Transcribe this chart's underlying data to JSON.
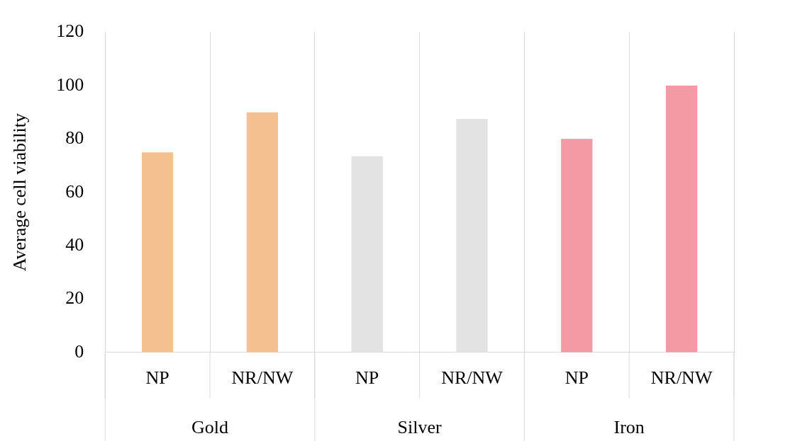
{
  "chart_data": {
    "type": "bar",
    "ylabel": "Average cell viability",
    "categories": [
      "NP",
      "NR/NW",
      "NP",
      "NR/NW",
      "NP",
      "NR/NW"
    ],
    "values": [
      75,
      90,
      73.5,
      87.5,
      80,
      100
    ],
    "colors": [
      "#f5c08f",
      "#f5c08f",
      "#e3e3e3",
      "#e3e3e3",
      "#f499a6",
      "#f499a6"
    ],
    "ylim": [
      0,
      120
    ],
    "yticks": [
      0,
      20,
      40,
      60,
      80,
      100,
      120
    ],
    "grid": "x",
    "annotations": [
      "Gold",
      "Silver",
      "Iron"
    ]
  }
}
